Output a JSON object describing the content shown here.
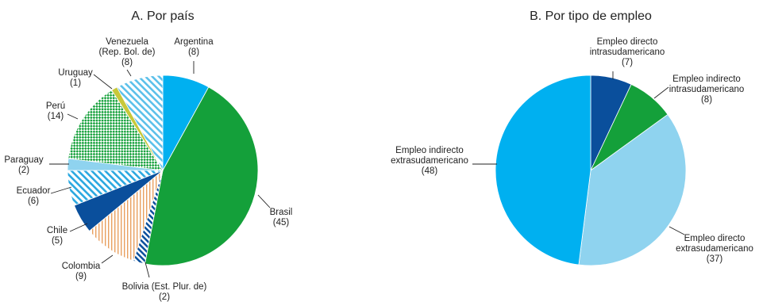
{
  "chart_data": [
    {
      "type": "pie",
      "title": "A. Por país",
      "slices": [
        {
          "label": [
            "Argentina"
          ],
          "value": 8,
          "display": "(8)",
          "color": "#00b0f0",
          "pattern": "solid"
        },
        {
          "label": [
            "Brasil"
          ],
          "value": 45,
          "display": "(45)",
          "color": "#14a03a",
          "pattern": "solid"
        },
        {
          "label": [
            "Bolivia (Est. Plur. de)"
          ],
          "value": 2,
          "display": "(2)",
          "color": "#0a4f9c",
          "pattern": "diagonal-stripes"
        },
        {
          "label": [
            "Colombia"
          ],
          "value": 9,
          "display": "(9)",
          "color": "#e8a060",
          "pattern": "vertical-lines"
        },
        {
          "label": [
            "Chile"
          ],
          "value": 5,
          "display": "(5)",
          "color": "#0a4f9c",
          "pattern": "solid"
        },
        {
          "label": [
            "Ecuador"
          ],
          "value": 6,
          "display": "(6)",
          "color": "#2aa8e0",
          "pattern": "diagonal-stripes"
        },
        {
          "label": [
            "Paraguay"
          ],
          "value": 2,
          "display": "(2)",
          "color": "#8fd3ef",
          "pattern": "solid"
        },
        {
          "label": [
            "Perú"
          ],
          "value": 14,
          "display": "(14)",
          "color": "#14a03a",
          "pattern": "checker"
        },
        {
          "label": [
            "Uruguay"
          ],
          "value": 1,
          "display": "(1)",
          "color": "#c8c83a",
          "pattern": "solid"
        },
        {
          "label": [
            "Venezuela",
            "(Rep. Bol. de)"
          ],
          "value": 8,
          "display": "(8)",
          "color": "#5bc0ea",
          "pattern": "diagonal-stripes"
        }
      ]
    },
    {
      "type": "pie",
      "title": "B. Por tipo de empleo",
      "slices": [
        {
          "label": [
            "Empleo directo",
            "intrasudamericano"
          ],
          "value": 7,
          "display": "(7)",
          "color": "#0a4f9c",
          "pattern": "solid"
        },
        {
          "label": [
            "Empleo indirecto",
            "intrasudamericano"
          ],
          "value": 8,
          "display": "(8)",
          "color": "#14a03a",
          "pattern": "solid"
        },
        {
          "label": [
            "Empleo directo",
            "extrasudamericano"
          ],
          "value": 37,
          "display": "(37)",
          "color": "#8fd3ef",
          "pattern": "solid"
        },
        {
          "label": [
            "Empleo indirecto",
            "extrasudamericano"
          ],
          "value": 48,
          "display": "(48)",
          "color": "#00b0f0",
          "pattern": "solid"
        }
      ]
    }
  ]
}
